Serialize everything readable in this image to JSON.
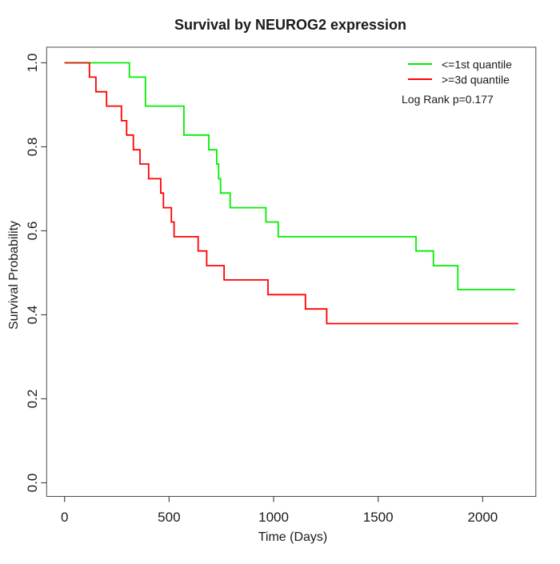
{
  "chart_data": {
    "type": "line",
    "variant": "kaplan-meier-step",
    "title": "Survival by NEUROG2 expression",
    "xlabel": "Time (Days)",
    "ylabel": "Survival Probability",
    "x_ticks": [
      0,
      500,
      1000,
      1500,
      2000
    ],
    "y_ticks": [
      "0.0",
      "0.2",
      "0.4",
      "0.6",
      "0.8",
      "1.0"
    ],
    "xlim": [
      0,
      2250
    ],
    "ylim": [
      0,
      1
    ],
    "grid": false,
    "legend": {
      "position": "top-right",
      "entries": [
        {
          "label": "<=1st quantile",
          "color": "#00ee00"
        },
        {
          "label": ">=3d quantile",
          "color": "#ff0000"
        }
      ],
      "annotation": "Log Rank p=0.177"
    },
    "series": [
      {
        "name": "<=1st quantile",
        "color": "#00ee00",
        "end_x": 2155,
        "steps": [
          [
            0,
            1.0
          ],
          [
            310,
            0.966
          ],
          [
            387,
            0.897
          ],
          [
            571,
            0.828
          ],
          [
            690,
            0.793
          ],
          [
            728,
            0.759
          ],
          [
            737,
            0.724
          ],
          [
            746,
            0.69
          ],
          [
            792,
            0.655
          ],
          [
            963,
            0.621
          ],
          [
            1022,
            0.586
          ],
          [
            1681,
            0.552
          ],
          [
            1764,
            0.517
          ],
          [
            1881,
            0.46
          ]
        ]
      },
      {
        "name": ">=3d quantile",
        "color": "#ff0000",
        "end_x": 2170,
        "steps": [
          [
            0,
            1.0
          ],
          [
            119,
            0.966
          ],
          [
            150,
            0.931
          ],
          [
            201,
            0.897
          ],
          [
            272,
            0.862
          ],
          [
            297,
            0.828
          ],
          [
            329,
            0.793
          ],
          [
            361,
            0.759
          ],
          [
            402,
            0.724
          ],
          [
            460,
            0.69
          ],
          [
            473,
            0.655
          ],
          [
            511,
            0.621
          ],
          [
            524,
            0.586
          ],
          [
            639,
            0.552
          ],
          [
            680,
            0.517
          ],
          [
            763,
            0.483
          ],
          [
            973,
            0.448
          ],
          [
            1152,
            0.414
          ],
          [
            1254,
            0.379
          ]
        ]
      }
    ],
    "overlap_segment": {
      "color": "#c23000",
      "from_x": 0,
      "to_x": 119,
      "y": 1.0
    },
    "frame_color": "#4a4a4a"
  }
}
